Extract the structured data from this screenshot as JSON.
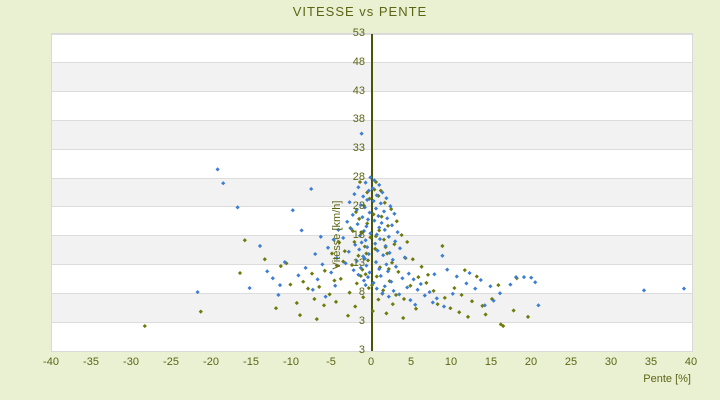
{
  "title": "VITESSE vs PENTE",
  "colors": {
    "background": "#eaf0d2",
    "band_light": "#ffffff",
    "band_dark": "#f2f2f2",
    "gridline": "#dcdcdc",
    "plot_border": "#d9d9d9",
    "text": "#5c6514",
    "zero_axis_line": "#4a5508",
    "series_blue": "#3c7ed3",
    "series_olive": "#6f7a0a"
  },
  "chart_data": {
    "type": "scatter",
    "title": "VITESSE vs PENTE",
    "xlabel": "Pente [%]",
    "ylabel": "Vitesse [km/h]",
    "xlim": [
      -40,
      40
    ],
    "ylim": [
      -2.03,
      53
    ],
    "x_ticks": [
      -40,
      -35,
      -30,
      -25,
      -20,
      -15,
      -10,
      -5,
      0,
      5,
      10,
      15,
      20,
      25,
      30,
      35,
      40
    ],
    "y_ticks": [
      53,
      48,
      43,
      38,
      33,
      28,
      23,
      18,
      13,
      8,
      3
    ],
    "y_axis_end_label": "3",
    "grid": "horizontal-bands-alternating",
    "legend": "none",
    "zero_axis_at_x": 0,
    "marker": "small-diamond",
    "series": [
      {
        "name": "series-olive",
        "color": "#6f7a0a",
        "points": [
          [
            0.5,
            27.3
          ],
          [
            -1.5,
            27.3
          ],
          [
            0.3,
            26.0
          ],
          [
            -0.6,
            25.5
          ],
          [
            1.1,
            25.8
          ],
          [
            0.8,
            24.9
          ],
          [
            -0.3,
            24.4
          ],
          [
            1.6,
            23.7
          ],
          [
            -1.0,
            23.2
          ],
          [
            2.4,
            22.6
          ],
          [
            -2.0,
            22.1
          ],
          [
            0.2,
            21.7
          ],
          [
            1.2,
            21.3
          ],
          [
            -1.6,
            20.9
          ],
          [
            3.1,
            20.5
          ],
          [
            -0.6,
            20.1
          ],
          [
            2.0,
            19.7
          ],
          [
            -2.7,
            19.3
          ],
          [
            0.9,
            18.9
          ],
          [
            -1.3,
            18.5
          ],
          [
            3.7,
            18.1
          ],
          [
            -0.2,
            17.7
          ],
          [
            1.5,
            17.3
          ],
          [
            -2.2,
            16.9
          ],
          [
            2.8,
            16.5
          ],
          [
            -0.9,
            16.1
          ],
          [
            0.4,
            15.7
          ],
          [
            -3.4,
            15.3
          ],
          [
            1.9,
            14.9
          ],
          [
            -1.7,
            14.5
          ],
          [
            4.2,
            14.1
          ],
          [
            -0.5,
            13.7
          ],
          [
            2.5,
            13.3
          ],
          [
            -2.5,
            12.9
          ],
          [
            1.0,
            12.5
          ],
          [
            -1.2,
            12.1
          ],
          [
            3.3,
            11.7
          ],
          [
            -0.8,
            11.3
          ],
          [
            0.6,
            10.9
          ],
          [
            -3.9,
            10.5
          ],
          [
            2.2,
            10.1
          ],
          [
            -1.9,
            9.7
          ],
          [
            4.8,
            9.3
          ],
          [
            -0.4,
            8.9
          ],
          [
            1.4,
            8.5
          ],
          [
            -2.8,
            8.1
          ],
          [
            3.0,
            7.7
          ],
          [
            -1.1,
            7.3
          ],
          [
            0.8,
            6.9
          ],
          [
            -4.5,
            6.5
          ],
          [
            2.6,
            6.1
          ],
          [
            -2.1,
            5.7
          ],
          [
            5.5,
            5.3
          ],
          [
            0.1,
            4.9
          ],
          [
            1.8,
            4.5
          ],
          [
            -3.0,
            4.1
          ],
          [
            3.9,
            3.7
          ],
          [
            0.5,
            17.9
          ],
          [
            1.7,
            16.0
          ],
          [
            -0.7,
            14.9
          ],
          [
            2.1,
            12.2
          ],
          [
            -1.4,
            11.0
          ],
          [
            0.0,
            9.4
          ],
          [
            1.3,
            7.9
          ],
          [
            4.4,
            16.9
          ],
          [
            5.1,
            13.9
          ],
          [
            5.8,
            10.8
          ],
          [
            4.0,
            7.0
          ],
          [
            -3.6,
            13.5
          ],
          [
            -2.4,
            18.8
          ],
          [
            6.2,
            12.6
          ],
          [
            7.0,
            11.2
          ],
          [
            8.8,
            16.2
          ],
          [
            6.8,
            9.8
          ],
          [
            7.7,
            8.4
          ],
          [
            9.1,
            7.2
          ],
          [
            10.3,
            8.9
          ],
          [
            8.2,
            6.1
          ],
          [
            11.2,
            7.7
          ],
          [
            9.8,
            5.4
          ],
          [
            12.5,
            6.6
          ],
          [
            10.9,
            4.7
          ],
          [
            13.8,
            5.8
          ],
          [
            12.0,
            3.9
          ],
          [
            15.0,
            7.0
          ],
          [
            14.2,
            4.3
          ],
          [
            16.4,
            2.3
          ],
          [
            16.1,
            2.6
          ],
          [
            17.7,
            5.0
          ],
          [
            18.1,
            10.6
          ],
          [
            19.5,
            3.9
          ],
          [
            15.8,
            9.4
          ],
          [
            13.1,
            10.9
          ],
          [
            11.6,
            12.0
          ],
          [
            -4.1,
            16.8
          ],
          [
            -5.0,
            14.9
          ],
          [
            -4.4,
            12.8
          ],
          [
            -5.9,
            11.9
          ],
          [
            -4.7,
            10.2
          ],
          [
            -6.6,
            9.1
          ],
          [
            -5.3,
            7.8
          ],
          [
            -7.2,
            7.0
          ],
          [
            -6.0,
            5.9
          ],
          [
            -8.0,
            8.8
          ],
          [
            -7.5,
            11.4
          ],
          [
            -8.6,
            10.0
          ],
          [
            -9.4,
            6.3
          ],
          [
            -10.2,
            9.5
          ],
          [
            -11.4,
            12.7
          ],
          [
            -10.7,
            13.2
          ],
          [
            -12.0,
            5.4
          ],
          [
            -13.4,
            13.9
          ],
          [
            -15.9,
            17.2
          ],
          [
            -16.5,
            11.5
          ],
          [
            -21.4,
            4.8
          ],
          [
            -28.4,
            2.3
          ],
          [
            -9.0,
            4.2
          ],
          [
            -6.9,
            3.5
          ]
        ]
      },
      {
        "name": "series-blue",
        "color": "#3c7ed3",
        "points": [
          [
            -0.2,
            28.1
          ],
          [
            0.3,
            27.6
          ],
          [
            -0.8,
            27.2
          ],
          [
            0.9,
            26.8
          ],
          [
            -1.7,
            26.4
          ],
          [
            0.1,
            26.2
          ],
          [
            -0.4,
            25.8
          ],
          [
            1.3,
            25.5
          ],
          [
            -2.2,
            25.2
          ],
          [
            0.6,
            25.0
          ],
          [
            -1.1,
            24.8
          ],
          [
            1.8,
            24.5
          ],
          [
            -0.6,
            24.2
          ],
          [
            0.2,
            24.0
          ],
          [
            -2.8,
            23.8
          ],
          [
            1.1,
            23.6
          ],
          [
            -1.4,
            23.3
          ],
          [
            2.3,
            23.1
          ],
          [
            -0.9,
            22.9
          ],
          [
            0.5,
            22.7
          ],
          [
            -1.9,
            22.5
          ],
          [
            1.5,
            22.2
          ],
          [
            -0.3,
            22.0
          ],
          [
            2.8,
            21.8
          ],
          [
            -2.4,
            21.6
          ],
          [
            0.8,
            21.4
          ],
          [
            -1.2,
            21.2
          ],
          [
            1.9,
            21.0
          ],
          [
            -0.5,
            20.8
          ],
          [
            0.3,
            20.6
          ],
          [
            -3.1,
            20.4
          ],
          [
            1.2,
            20.2
          ],
          [
            -1.8,
            20.0
          ],
          [
            2.5,
            19.8
          ],
          [
            -0.7,
            19.6
          ],
          [
            0.9,
            19.4
          ],
          [
            -2.6,
            19.2
          ],
          [
            1.6,
            19.0
          ],
          [
            -1.0,
            18.8
          ],
          [
            3.2,
            18.6
          ],
          [
            -0.2,
            18.4
          ],
          [
            0.6,
            18.2
          ],
          [
            -1.5,
            18.0
          ],
          [
            2.1,
            17.8
          ],
          [
            -3.6,
            17.6
          ],
          [
            1.0,
            17.4
          ],
          [
            -0.8,
            17.2
          ],
          [
            2.9,
            17.0
          ],
          [
            -1.3,
            16.8
          ],
          [
            0.4,
            16.6
          ],
          [
            -2.1,
            16.4
          ],
          [
            1.7,
            16.2
          ],
          [
            -0.6,
            16.0
          ],
          [
            3.5,
            15.8
          ],
          [
            -1.6,
            15.6
          ],
          [
            0.7,
            15.4
          ],
          [
            -2.9,
            15.2
          ],
          [
            2.2,
            15.0
          ],
          [
            -0.4,
            14.8
          ],
          [
            1.4,
            14.6
          ],
          [
            -1.1,
            14.4
          ],
          [
            4.1,
            14.2
          ],
          [
            -0.9,
            14.0
          ],
          [
            2.6,
            13.8
          ],
          [
            -1.9,
            13.6
          ],
          [
            0.5,
            13.4
          ],
          [
            -3.3,
            13.2
          ],
          [
            1.8,
            13.0
          ],
          [
            -0.7,
            12.8
          ],
          [
            3.0,
            12.6
          ],
          [
            -1.4,
            12.4
          ],
          [
            0.9,
            12.2
          ],
          [
            -2.3,
            12.0
          ],
          [
            2.0,
            11.8
          ],
          [
            -0.3,
            11.6
          ],
          [
            4.6,
            11.4
          ],
          [
            -1.7,
            11.2
          ],
          [
            1.1,
            11.0
          ],
          [
            -0.5,
            10.8
          ],
          [
            3.8,
            10.6
          ],
          [
            5.2,
            10.4
          ],
          [
            -1.0,
            10.2
          ],
          [
            2.4,
            10.0
          ],
          [
            0.2,
            9.8
          ],
          [
            6.1,
            9.6
          ],
          [
            -0.8,
            9.4
          ],
          [
            1.6,
            9.2
          ],
          [
            4.4,
            9.0
          ],
          [
            0.6,
            8.8
          ],
          [
            5.7,
            8.6
          ],
          [
            2.7,
            8.4
          ],
          [
            7.2,
            8.2
          ],
          [
            1.3,
            8.0
          ],
          [
            3.4,
            7.8
          ],
          [
            6.6,
            7.6
          ],
          [
            2.1,
            7.4
          ],
          [
            8.1,
            7.1
          ],
          [
            4.8,
            6.8
          ],
          [
            7.6,
            6.4
          ],
          [
            5.4,
            6.0
          ],
          [
            9.0,
            5.7
          ],
          [
            8.8,
            14.5
          ],
          [
            7.8,
            11.3
          ],
          [
            9.4,
            12.1
          ],
          [
            10.6,
            10.9
          ],
          [
            11.8,
            9.7
          ],
          [
            12.9,
            8.8
          ],
          [
            10.1,
            7.9
          ],
          [
            13.6,
            10.3
          ],
          [
            14.8,
            9.2
          ],
          [
            12.2,
            11.5
          ],
          [
            16.0,
            8.0
          ],
          [
            15.2,
            6.7
          ],
          [
            17.3,
            9.5
          ],
          [
            18.0,
            10.8
          ],
          [
            19.0,
            10.8
          ],
          [
            19.9,
            10.7
          ],
          [
            20.4,
            9.9
          ],
          [
            20.8,
            5.9
          ],
          [
            14.1,
            5.9
          ],
          [
            -4.2,
            19.0
          ],
          [
            -4.8,
            17.3
          ],
          [
            -5.5,
            15.9
          ],
          [
            -4.4,
            14.1
          ],
          [
            -6.2,
            13.0
          ],
          [
            -5.1,
            11.6
          ],
          [
            -6.8,
            10.4
          ],
          [
            -4.6,
            9.3
          ],
          [
            -7.4,
            8.6
          ],
          [
            -5.8,
            7.4
          ],
          [
            -8.3,
            12.4
          ],
          [
            -7.1,
            14.8
          ],
          [
            -9.2,
            11.1
          ],
          [
            -8.8,
            18.9
          ],
          [
            -6.4,
            17.8
          ],
          [
            -7.6,
            26.1
          ],
          [
            -9.9,
            22.4
          ],
          [
            -10.9,
            13.4
          ],
          [
            -12.4,
            10.6
          ],
          [
            -11.5,
            9.4
          ],
          [
            -11.7,
            7.7
          ],
          [
            -13.1,
            11.8
          ],
          [
            -14.0,
            16.2
          ],
          [
            -16.8,
            22.9
          ],
          [
            -21.8,
            8.2
          ],
          [
            -15.3,
            8.9
          ],
          [
            -19.3,
            29.5
          ],
          [
            -18.6,
            27.1
          ],
          [
            -1.3,
            35.7
          ],
          [
            34.0,
            8.5
          ],
          [
            39.0,
            8.8
          ]
        ]
      }
    ]
  }
}
